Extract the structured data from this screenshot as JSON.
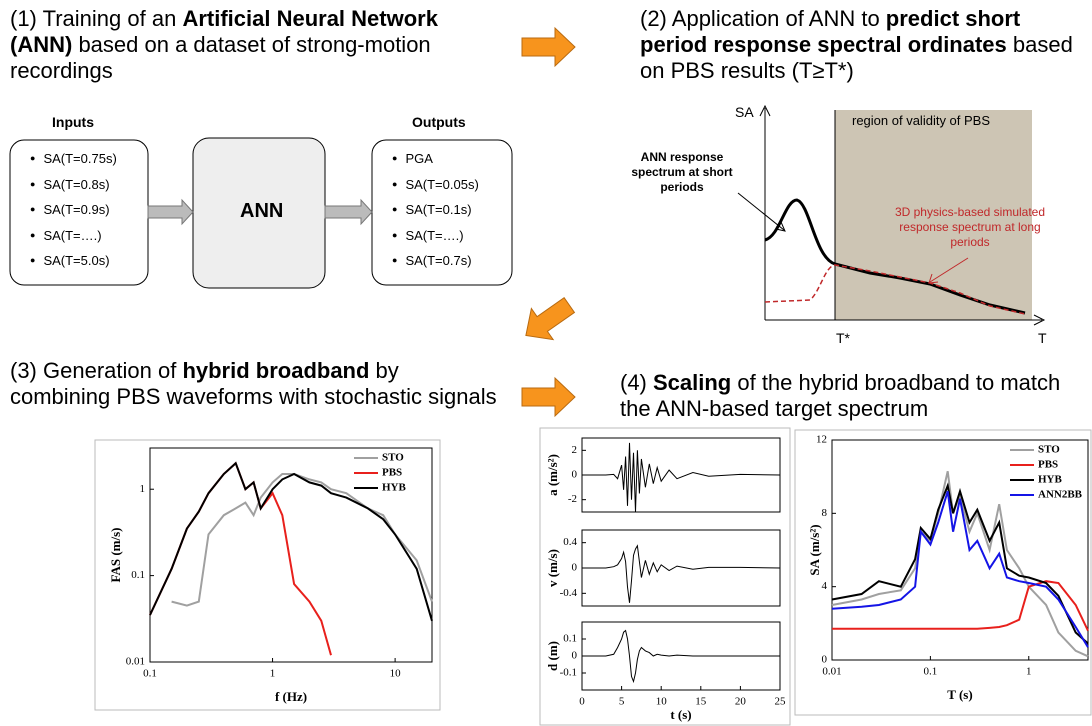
{
  "steps": [
    {
      "parts": [
        {
          "text": "(1) Training of an ",
          "bold": false
        },
        {
          "text": "Artificial Neural Network (ANN)",
          "bold": true
        },
        {
          "text": " based on a dataset of strong-motion recordings",
          "bold": false
        }
      ]
    },
    {
      "parts": [
        {
          "text": "(2) Application of ANN to ",
          "bold": false
        },
        {
          "text": "predict short period response spectral ordinates",
          "bold": true
        },
        {
          "text": " based on PBS results (T≥T*)",
          "bold": false
        }
      ]
    },
    {
      "parts": [
        {
          "text": "(3) Generation of ",
          "bold": false
        },
        {
          "text": "hybrid broadband",
          "bold": true
        },
        {
          "text": " by combining PBS waveforms with stochastic signals",
          "bold": false
        }
      ]
    },
    {
      "parts": [
        {
          "text": "(4) ",
          "bold": false
        },
        {
          "text": "Scaling",
          "bold": true
        },
        {
          "text": " of the hybrid broadband to match the ANN-based target spectrum",
          "bold": false
        }
      ]
    }
  ],
  "network": {
    "inputs": {
      "title": "Inputs",
      "items": [
        "SA(T=0.75s)",
        "SA(T=0.8s)",
        "SA(T=0.9s)",
        "SA(T=….)",
        "SA(T=5.0s)"
      ]
    },
    "model": "ANN",
    "outputs": {
      "title": "Outputs",
      "items": [
        "PGA",
        "SA(T=0.05s)",
        "SA(T=0.1s)",
        "SA(T=….)",
        "SA(T=0.7s)"
      ]
    }
  },
  "sketch": {
    "y_label": "SA",
    "x_label": "T",
    "t_star": "T*",
    "region": "region of validity of PBS",
    "ann_note": "ANN response spectrum at short periods",
    "pbs_note": "3D physics-based simulated response spectrum at long periods"
  },
  "chart_data": [
    {
      "type": "line",
      "xlabel": "f (Hz)",
      "ylabel": "FAS (m/s)",
      "xlog": true,
      "ylog": true,
      "legend": "upper right",
      "xlim": [
        0.1,
        20
      ],
      "ylim": [
        0.01,
        3
      ],
      "xticks": [
        0.1,
        1,
        10
      ],
      "yticks": [
        0.01,
        0.1,
        1
      ],
      "x": [
        0.1,
        0.15,
        0.2,
        0.25,
        0.3,
        0.4,
        0.5,
        0.6,
        0.7,
        0.8,
        1,
        1.2,
        1.5,
        2,
        2.5,
        3,
        4,
        6,
        8,
        10,
        15,
        20
      ],
      "series": [
        {
          "name": "STO",
          "color": "#a0a0a0",
          "values": [
            null,
            0.05,
            0.045,
            0.05,
            0.3,
            0.5,
            0.6,
            0.7,
            0.5,
            0.8,
            1.2,
            1.5,
            1.5,
            1.3,
            1.2,
            1.0,
            0.9,
            0.6,
            0.5,
            0.3,
            0.15,
            0.05
          ]
        },
        {
          "name": "PBS",
          "color": "#e8201c",
          "values": [
            0.035,
            0.12,
            0.35,
            0.55,
            0.9,
            1.5,
            2.0,
            1.0,
            1.2,
            0.6,
            0.9,
            0.5,
            0.08,
            0.05,
            0.03,
            0.012,
            null,
            null,
            null,
            null,
            null,
            null
          ]
        },
        {
          "name": "HYB",
          "color": "#000000",
          "values": [
            0.035,
            0.12,
            0.35,
            0.55,
            0.9,
            1.5,
            2.0,
            1.0,
            1.2,
            0.6,
            1.0,
            1.3,
            1.5,
            1.2,
            1.1,
            0.9,
            0.8,
            0.6,
            0.45,
            0.3,
            0.12,
            0.03
          ]
        }
      ]
    },
    {
      "type": "line",
      "ylabel": "a (m/s²)",
      "xlim": [
        0,
        25
      ],
      "ylim": [
        -3,
        3
      ],
      "yticks": [
        -2,
        0,
        2
      ],
      "x": [
        0,
        3,
        4,
        4.5,
        5,
        5.25,
        5.5,
        5.75,
        6,
        6.25,
        6.5,
        6.75,
        7,
        7.25,
        7.5,
        8,
        8.5,
        9,
        9.5,
        10,
        11,
        12,
        14,
        16,
        20,
        25
      ],
      "series": [
        {
          "color": "#000000",
          "values": [
            0,
            0,
            0.05,
            -0.3,
            0.8,
            -1.2,
            1.5,
            -2.5,
            2.6,
            -2.0,
            1.8,
            -3.0,
            2.0,
            -1.5,
            1.3,
            -1.0,
            0.9,
            -0.7,
            0.6,
            -0.5,
            0.4,
            -0.3,
            0.2,
            -0.1,
            0.05,
            0
          ]
        }
      ]
    },
    {
      "type": "line",
      "ylabel": "v (m/s)",
      "xlim": [
        0,
        25
      ],
      "ylim": [
        -0.6,
        0.6
      ],
      "yticks": [
        -0.4,
        0,
        0.4
      ],
      "x": [
        0,
        3,
        4,
        4.5,
        5,
        5.25,
        5.5,
        5.75,
        6,
        6.25,
        6.5,
        6.75,
        7,
        7.25,
        7.5,
        8,
        8.5,
        9,
        9.5,
        10,
        11,
        12,
        14,
        16,
        20,
        25
      ],
      "series": [
        {
          "color": "#000000",
          "values": [
            0,
            0,
            0.02,
            0.05,
            0.15,
            0.25,
            0.1,
            -0.3,
            -0.55,
            -0.2,
            0.2,
            0.3,
            0.35,
            0.1,
            -0.15,
            0.12,
            -0.1,
            0.08,
            -0.06,
            0.05,
            -0.04,
            0.03,
            -0.02,
            0.01,
            0.01,
            0
          ]
        }
      ]
    },
    {
      "type": "line",
      "xlabel": "t (s)",
      "ylabel": "d (m)",
      "xlim": [
        0,
        25
      ],
      "ylim": [
        -0.2,
        0.2
      ],
      "yticks": [
        -0.1,
        0,
        0.1
      ],
      "xticks": [
        0,
        5,
        10,
        15,
        20,
        25
      ],
      "x": [
        0,
        3,
        4,
        4.5,
        5,
        5.25,
        5.5,
        5.75,
        6,
        6.25,
        6.5,
        6.75,
        7,
        7.25,
        7.5,
        8,
        8.5,
        9,
        9.5,
        10,
        11,
        12,
        14,
        16,
        20,
        25
      ],
      "series": [
        {
          "color": "#000000",
          "values": [
            0,
            0,
            0.01,
            0.05,
            0.1,
            0.14,
            0.15,
            0.1,
            0,
            -0.12,
            -0.15,
            -0.1,
            -0.02,
            0.03,
            0.05,
            0.03,
            0.02,
            0,
            0.01,
            0.005,
            0,
            0.005,
            0,
            0,
            0,
            0
          ]
        }
      ]
    },
    {
      "type": "line",
      "xlabel": "T (s)",
      "ylabel": "SA (m/s²)",
      "xlog": true,
      "legend": "upper right",
      "xlim": [
        0.01,
        4
      ],
      "ylim": [
        0,
        12
      ],
      "xticks": [
        0.01,
        0.1,
        1
      ],
      "yticks": [
        0,
        4,
        8,
        12
      ],
      "x": [
        0.01,
        0.02,
        0.03,
        0.05,
        0.07,
        0.08,
        0.1,
        0.12,
        0.15,
        0.17,
        0.2,
        0.25,
        0.3,
        0.4,
        0.5,
        0.6,
        0.8,
        1,
        1.5,
        2,
        3,
        4
      ],
      "series": [
        {
          "name": "STO",
          "color": "#a0a0a0",
          "values": [
            3.0,
            3.3,
            3.6,
            3.8,
            5,
            7,
            6.5,
            8,
            10.3,
            8,
            9,
            7,
            8,
            6,
            8.5,
            6,
            5,
            4,
            3,
            1.5,
            0.5,
            0.2
          ]
        },
        {
          "name": "PBS",
          "color": "#e8201c",
          "values": [
            1.7,
            1.7,
            1.7,
            1.7,
            1.7,
            1.7,
            1.7,
            1.7,
            1.7,
            1.7,
            1.7,
            1.7,
            1.7,
            1.75,
            1.8,
            1.9,
            2.2,
            4,
            4.3,
            4.2,
            3.0,
            1.6
          ]
        },
        {
          "name": "HYB",
          "color": "#000000",
          "values": [
            3.3,
            3.6,
            4.3,
            4.0,
            5.5,
            7.2,
            6.6,
            8.2,
            9.5,
            8.0,
            9.2,
            7.5,
            8.2,
            6.5,
            7.5,
            5,
            4.6,
            4.5,
            4.2,
            3.5,
            1.5,
            0.9
          ]
        },
        {
          "name": "ANN2BB",
          "color": "#1414e6",
          "values": [
            2.8,
            2.9,
            3.0,
            3.3,
            4,
            7,
            6.3,
            7.5,
            9.2,
            7,
            8.8,
            6,
            6.5,
            5,
            5.8,
            4.5,
            4.3,
            4.2,
            4.0,
            3.3,
            1.8,
            0.7
          ]
        }
      ]
    }
  ]
}
